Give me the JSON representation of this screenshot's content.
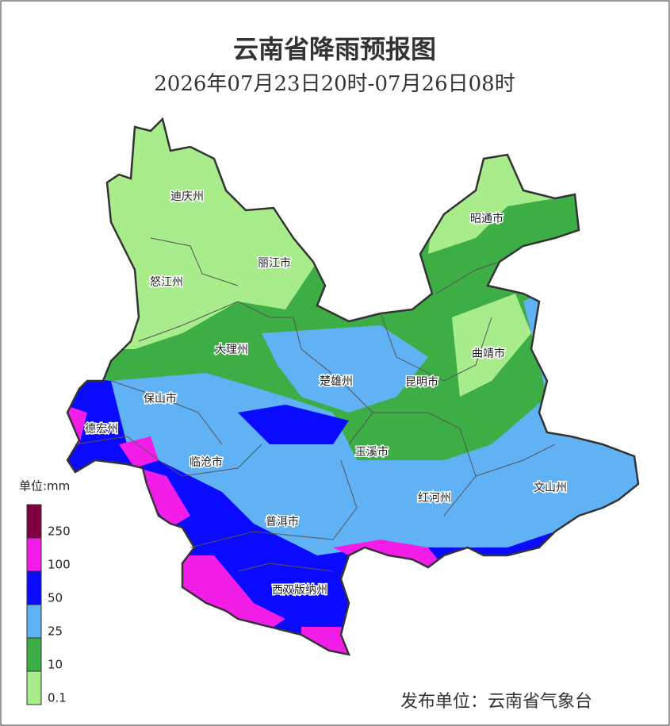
{
  "header": {
    "title": "云南省降雨预报图",
    "subtitle": "2026年07月23日20时-07月26日08时"
  },
  "regions": [
    "迪庆州",
    "怒江州",
    "丽江市",
    "大理州",
    "保山市",
    "德宏州",
    "临沧市",
    "普洱市",
    "西双版纳州",
    "楚雄州",
    "昆明市",
    "玉溪市",
    "红河州",
    "文山州",
    "曲靖市",
    "昭通市"
  ],
  "legend": {
    "title": "单位:mm",
    "items": [
      {
        "value": 0.1,
        "color": "#a8ec8c"
      },
      {
        "value": 10,
        "color": "#3dae45"
      },
      {
        "value": 25,
        "color": "#60b2f4"
      },
      {
        "value": 50,
        "color": "#0a0aff"
      },
      {
        "value": 100,
        "color": "#f21ee8"
      },
      {
        "value": 250,
        "color": "#80003f"
      }
    ]
  },
  "footer": {
    "publisher": "发布单位：云南省气象台"
  }
}
